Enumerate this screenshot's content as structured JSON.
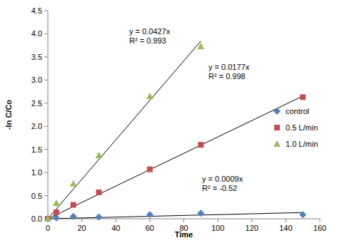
{
  "chart_data": {
    "type": "scatter",
    "x_label": "Time",
    "y_label": "-ln C/Co",
    "xlim": [
      0,
      160
    ],
    "xticks": [
      0,
      20,
      40,
      60,
      80,
      100,
      120,
      140,
      160
    ],
    "ylim": [
      0,
      4.5
    ],
    "yticks": [
      {
        "value": 0,
        "label": "0.0"
      },
      0.5,
      {
        "value": 1,
        "label": "1.0"
      },
      1.5,
      {
        "value": 2,
        "label": "2.0"
      },
      2.5,
      {
        "value": 3,
        "label": "3.0"
      },
      3.5,
      {
        "value": 4,
        "label": "4.0"
      },
      4.5
    ],
    "grid": false,
    "legend": "right",
    "series": [
      {
        "name": "control",
        "color": "#4F81BD",
        "marker": "diamond",
        "x": [
          0,
          5,
          15,
          30,
          60,
          90,
          150
        ],
        "values": [
          0,
          0.02,
          0.05,
          0.04,
          0.09,
          0.12,
          0.09
        ],
        "trendline": {
          "x": [
            0,
            150
          ],
          "values": [
            0,
            0.135
          ],
          "label": "y = 0.0009x",
          "r2_label": "R² = -0.52"
        }
      },
      {
        "name": "0.5 L/min",
        "color": "#C0504D",
        "marker": "square",
        "x": [
          0,
          5,
          15,
          30,
          60,
          90,
          150
        ],
        "values": [
          0,
          0.14,
          0.3,
          0.57,
          1.07,
          1.6,
          2.63
        ],
        "trendline": {
          "x": [
            0,
            150
          ],
          "values": [
            0,
            2.655
          ],
          "label": "y = 0.0177x",
          "r2_label": "R² = 0.998"
        }
      },
      {
        "name": "1.0 L/min",
        "color": "#9BBB59",
        "marker": "triangle",
        "x": [
          0,
          5,
          15,
          30,
          60,
          90
        ],
        "values": [
          0,
          0.34,
          0.76,
          1.37,
          2.65,
          3.73
        ],
        "trendline": {
          "x": [
            0,
            90
          ],
          "values": [
            0,
            3.843
          ],
          "label": "y = 0.0427x",
          "r2_label": "R² = 0.993"
        }
      }
    ]
  }
}
